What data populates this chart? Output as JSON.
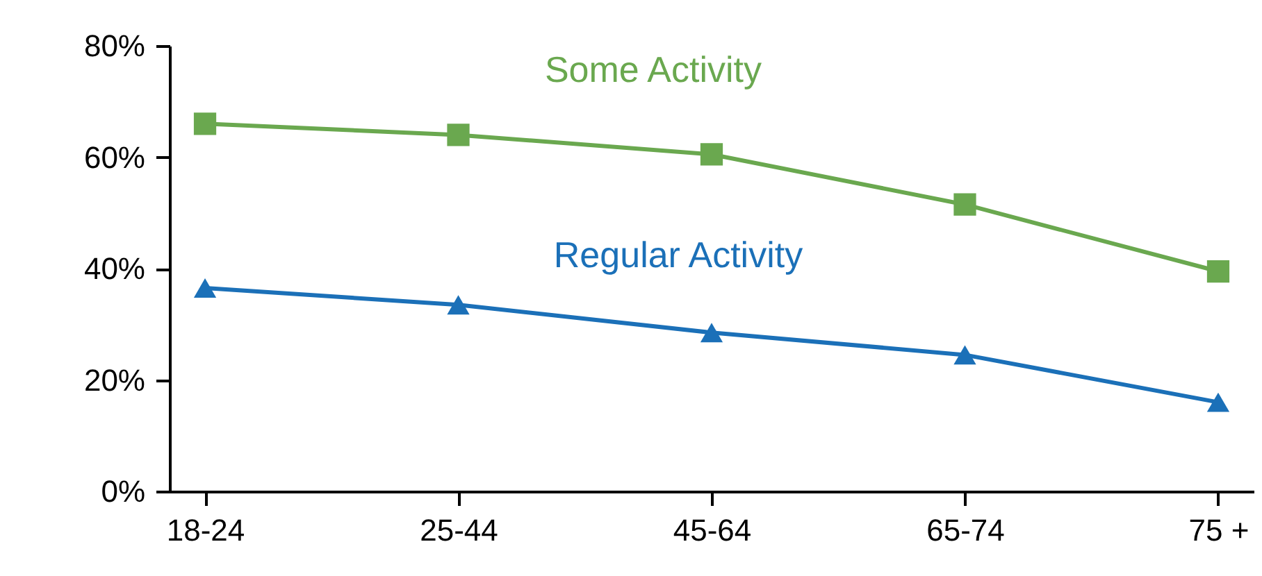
{
  "chart_data": {
    "type": "line",
    "categories": [
      "18-24",
      "25-44",
      "45-64",
      "65-74",
      "75 +"
    ],
    "series": [
      {
        "name": "Some Activity",
        "color": "#6aa84f",
        "marker": "square",
        "values": [
          66,
          64,
          60.5,
          51.5,
          39.5
        ]
      },
      {
        "name": "Regular Activity",
        "color": "#1b70b8",
        "marker": "triangle",
        "values": [
          36.5,
          33.5,
          28.5,
          24.5,
          16
        ]
      }
    ],
    "ylim": [
      0,
      80
    ],
    "yticks": [
      {
        "value": 0,
        "label": "0%"
      },
      {
        "value": 20,
        "label": "20%"
      },
      {
        "value": 40,
        "label": "40%"
      },
      {
        "value": 60,
        "label": "60%"
      },
      {
        "value": 80,
        "label": "80%"
      }
    ],
    "grid": false
  }
}
